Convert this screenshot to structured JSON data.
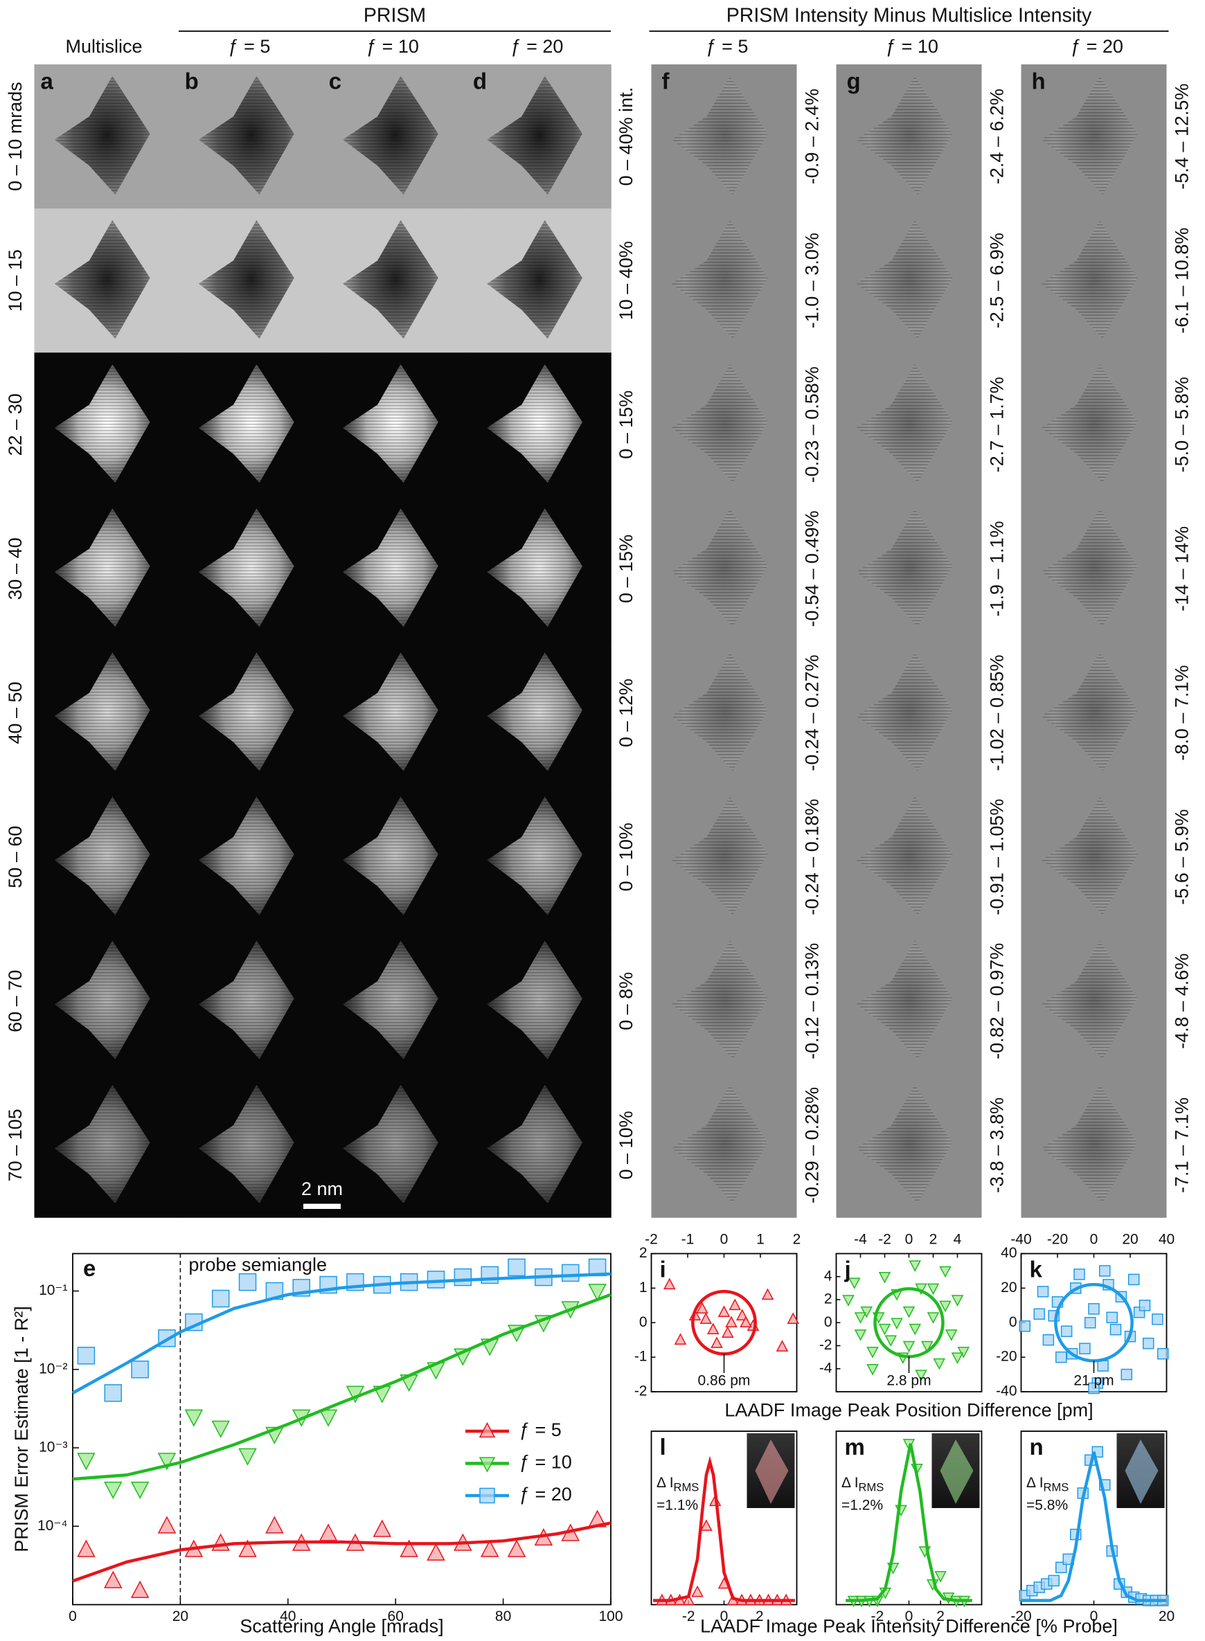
{
  "figure": {
    "headers": {
      "prism": "PRISM",
      "difference": "PRISM Intensity Minus Multislice Intensity"
    },
    "columns": [
      "Multislice",
      "ƒ = 5",
      "ƒ = 10",
      "ƒ = 20"
    ],
    "difference_columns": [
      "ƒ = 5",
      "ƒ = 10",
      "ƒ = 20"
    ],
    "panel_letters": [
      "a",
      "b",
      "c",
      "d"
    ],
    "difference_letters": [
      "f",
      "g",
      "h"
    ],
    "rows": [
      "0 – 10 mrads",
      "10 – 15",
      "22 – 30",
      "30 – 40",
      "40 – 50",
      "50 – 60",
      "60 – 70",
      "70 – 105"
    ],
    "intensity_ranges": [
      "0 – 40% int.",
      "10 – 40%",
      "0 – 15%",
      "0 – 15%",
      "0 – 12%",
      "0 – 10%",
      "0 – 8%",
      "0 – 10%"
    ],
    "difference_ranges": [
      [
        "-0.9 – 2.4%",
        "-1.0 – 3.0%",
        "-0.23 – 0.58%",
        "-0.54 – 0.49%",
        "-0.24 – 0.27%",
        "-0.24 – 0.18%",
        "-0.12 – 0.13%",
        "-0.29 – 0.28%"
      ],
      [
        "-2.4 – 6.2%",
        "-2.5 – 6.9%",
        "-2.7 – 1.7%",
        "-1.9 – 1.1%",
        "-1.02 – 0.85%",
        "-0.91 – 1.05%",
        "-0.82 – 0.97%",
        "-3.8 – 3.8%"
      ],
      [
        "-5.4 – 12.5%",
        "-6.1 – 10.8%",
        "-5.0 – 5.8%",
        "-14 – 14%",
        "-8.0 – 7.1%",
        "-5.6 – 5.9%",
        "-4.8 – 4.6%",
        "-7.1 – 7.1%"
      ]
    ],
    "scale_bar": "2 nm",
    "position_xlabel": "LAADF Image Peak Position Difference [pm]",
    "intensity_xlabel": "LAADF Image Peak Intensity Difference [% Probe]"
  },
  "chart_data": [
    {
      "type": "scatter-fit",
      "label": "e",
      "annotation": "probe semiangle",
      "annotation_x": 20,
      "xlabel": "Scattering Angle [mrads]",
      "ylabel": "PRISM Error Estimate  [1 - R²]",
      "xlim": [
        0,
        100
      ],
      "xticks": [
        0,
        20,
        40,
        60,
        80,
        100
      ],
      "ylim": [
        1e-05,
        0.3
      ],
      "log_y": true,
      "yticks": [
        {
          "value": 0.0001,
          "label": "10⁻⁴"
        },
        {
          "value": 0.001,
          "label": "10⁻³"
        },
        {
          "value": 0.01,
          "label": "10⁻²"
        },
        {
          "value": 0.1,
          "label": "10⁻¹"
        }
      ],
      "legend": "right",
      "x": [
        2.5,
        7.5,
        12.5,
        17.5,
        22.5,
        27.5,
        32.5,
        37.5,
        42.5,
        47.5,
        52.5,
        57.5,
        62.5,
        67.5,
        72.5,
        77.5,
        82.5,
        87.5,
        92.5,
        97.5
      ],
      "fit_x": [
        0,
        10,
        20,
        30,
        40,
        50,
        60,
        70,
        80,
        90,
        100
      ],
      "series": [
        {
          "name": "ƒ = 5",
          "color": "#e8141c",
          "marker_color": "#f5a3a6",
          "marker": "triangle-up",
          "values": [
            5e-05,
            2e-05,
            1.5e-05,
            0.0001,
            5e-05,
            6e-05,
            5e-05,
            0.0001,
            6e-05,
            8e-05,
            6e-05,
            9e-05,
            5e-05,
            4.5e-05,
            6e-05,
            5e-05,
            5e-05,
            7e-05,
            8e-05,
            0.00012
          ],
          "fit": [
            2e-05,
            3.5e-05,
            5e-05,
            6e-05,
            6.3e-05,
            6.3e-05,
            6e-05,
            6e-05,
            6.5e-05,
            8e-05,
            0.00011
          ]
        },
        {
          "name": "ƒ = 10",
          "color": "#22bb22",
          "marker_color": "#a0e890",
          "marker": "triangle-down",
          "values": [
            0.0007,
            0.0003,
            0.0003,
            0.0007,
            0.0025,
            0.0018,
            0.0008,
            0.0015,
            0.0025,
            0.0025,
            0.005,
            0.005,
            0.007,
            0.01,
            0.015,
            0.02,
            0.03,
            0.04,
            0.06,
            0.1
          ],
          "fit": [
            0.0004,
            0.00045,
            0.00065,
            0.0011,
            0.002,
            0.0038,
            0.007,
            0.014,
            0.028,
            0.05,
            0.09
          ]
        },
        {
          "name": "ƒ = 20",
          "color": "#1e9be8",
          "marker_color": "#a8d4f5",
          "marker": "square",
          "values": [
            0.015,
            0.005,
            0.01,
            0.025,
            0.04,
            0.08,
            0.13,
            0.1,
            0.11,
            0.12,
            0.13,
            0.12,
            0.13,
            0.14,
            0.15,
            0.16,
            0.2,
            0.15,
            0.17,
            0.2
          ],
          "fit": [
            0.005,
            0.012,
            0.03,
            0.06,
            0.09,
            0.11,
            0.125,
            0.135,
            0.145,
            0.155,
            0.165
          ]
        }
      ]
    },
    {
      "type": "scatter-circle",
      "label": "i",
      "color": "#e8141c",
      "marker_color": "#f5a3a6",
      "marker": "triangle-up",
      "xlim": [
        -2,
        2
      ],
      "xticks": [
        -2,
        -1,
        0,
        1,
        2
      ],
      "ylim": [
        -2,
        2
      ],
      "yticks": [
        -2,
        -1,
        0,
        1,
        2
      ],
      "x": [
        -1.5,
        -0.8,
        -0.5,
        -0.3,
        0,
        0.2,
        0.5,
        0.8,
        1.2,
        1.6,
        -0.2,
        0.3,
        -0.6,
        0.6,
        0.1,
        1.9,
        -1.2
      ],
      "y": [
        1.1,
        0.2,
        0.1,
        -0.2,
        0.3,
        0,
        0.2,
        -0.1,
        0.8,
        -0.7,
        -0.6,
        0.5,
        0.4,
        0,
        -0.3,
        0.1,
        -0.5
      ],
      "rms": 0.86,
      "rms_label": "0.86 pm"
    },
    {
      "type": "scatter-circle",
      "label": "j",
      "color": "#22bb22",
      "marker_color": "#a0e890",
      "marker": "triangle-down",
      "xlim": [
        -6,
        6
      ],
      "xticks": [
        -4,
        -2,
        0,
        2,
        4
      ],
      "ylim": [
        -6,
        6
      ],
      "yticks": [
        -4,
        -2,
        0,
        2,
        4
      ],
      "x": [
        -5,
        -4.5,
        -4,
        -3.5,
        -3,
        -2.5,
        -2,
        -1.5,
        -1,
        -0.5,
        0,
        0.5,
        1,
        1.5,
        2,
        2.5,
        3,
        3.5,
        4,
        4.5,
        -3,
        -1,
        1,
        3,
        0,
        -2,
        2,
        -4,
        4,
        0.5
      ],
      "y": [
        2,
        3.5,
        -1,
        1,
        -2.5,
        0.5,
        4,
        -1.5,
        2.5,
        -3,
        1,
        -0.5,
        3,
        -2,
        0.5,
        -3.5,
        1.5,
        -1,
        2,
        -2.5,
        -4,
        0,
        -4.5,
        4.5,
        -2,
        -0.5,
        3,
        0.5,
        -3,
        5
      ],
      "rms": 2.8,
      "rms_label": "2.8 pm"
    },
    {
      "type": "scatter-circle",
      "label": "k",
      "color": "#1e9be8",
      "marker_color": "#a8d4f5",
      "marker": "square",
      "xlim": [
        -40,
        40
      ],
      "xticks": [
        -40,
        -20,
        0,
        20,
        40
      ],
      "ylim": [
        -40,
        40
      ],
      "yticks": [
        -40,
        -20,
        0,
        20,
        40
      ],
      "x": [
        -38,
        -30,
        -25,
        -20,
        -15,
        -10,
        -5,
        0,
        5,
        10,
        15,
        20,
        25,
        30,
        35,
        -18,
        -8,
        8,
        18,
        28,
        -28,
        2,
        -2,
        12,
        -12,
        38,
        22,
        -22,
        0,
        6
      ],
      "y": [
        -2,
        5,
        -10,
        12,
        -5,
        20,
        -15,
        8,
        -25,
        3,
        15,
        -8,
        6,
        -12,
        2,
        -20,
        28,
        22,
        -30,
        10,
        18,
        -35,
        0,
        -4,
        -18,
        -18,
        25,
        4,
        -38,
        30
      ],
      "rms": 21,
      "rms_label": "21 pm"
    },
    {
      "type": "histogram-fit",
      "label": "l",
      "color": "#e8141c",
      "marker_color": "#f5a3a6",
      "marker": "triangle-up",
      "xlim": [
        -4.1,
        4.1
      ],
      "xticks": [
        -2,
        0,
        2
      ],
      "ylim": [
        0,
        1
      ],
      "x": [
        -3.5,
        -3,
        -2.5,
        -2,
        -1.5,
        -1,
        -0.5,
        0,
        0.5,
        1,
        1.5,
        2,
        2.5,
        3,
        3.5
      ],
      "y": [
        0,
        0,
        0,
        0,
        0.05,
        0.45,
        0.6,
        0.1,
        0,
        0,
        0,
        0,
        0,
        0,
        0
      ],
      "fit_x": [
        -4,
        -3,
        -2,
        -1.5,
        -1.2,
        -1,
        -0.8,
        -0.6,
        -0.4,
        0,
        0.5,
        1,
        2,
        3,
        4
      ],
      "fit": [
        0,
        0,
        0.024,
        0.25,
        0.57,
        0.76,
        0.84,
        0.76,
        0.57,
        0.17,
        0.013,
        0,
        0,
        0,
        0
      ],
      "delta": "Δ I",
      "delta_sub": "RMS",
      "rms_label": "=1.1%"
    },
    {
      "type": "histogram-fit",
      "label": "m",
      "color": "#22bb22",
      "marker_color": "#a0e890",
      "marker": "triangle-down",
      "xlim": [
        -4.6,
        4.6
      ],
      "xticks": [
        -2,
        0,
        2
      ],
      "ylim": [
        0,
        1
      ],
      "x": [
        -3.5,
        -3,
        -2.5,
        -2,
        -1.5,
        -1,
        -0.5,
        0,
        0.5,
        1,
        1.5,
        2,
        2.5,
        3,
        3.5
      ],
      "y": [
        0,
        0,
        0,
        0,
        0.05,
        0.2,
        0.55,
        0.95,
        0.8,
        0.3,
        0.1,
        0.15,
        0.02,
        0,
        0
      ],
      "fit_x": [
        -4,
        -3,
        -2,
        -1.5,
        -1,
        -0.5,
        0.1,
        0.7,
        1.2,
        1.7,
        2.2,
        3,
        4
      ],
      "fit": [
        0,
        0,
        0.01,
        0.07,
        0.28,
        0.66,
        0.95,
        0.66,
        0.28,
        0.07,
        0.01,
        0,
        0
      ],
      "delta": "Δ I",
      "delta_sub": "RMS",
      "rms_label": "=1.2%"
    },
    {
      "type": "histogram-fit",
      "label": "n",
      "color": "#1e9be8",
      "marker_color": "#a8d4f5",
      "marker": "square",
      "xlim": [
        -20,
        20
      ],
      "xticks": [
        -20,
        0,
        20
      ],
      "ylim": [
        0,
        1
      ],
      "x": [
        -19,
        -17,
        -15,
        -13,
        -11,
        -9,
        -7,
        -5,
        -3,
        -1,
        1,
        3,
        5,
        7,
        9,
        11,
        13,
        15,
        17,
        19
      ],
      "y": [
        0.03,
        0.06,
        0.08,
        0.1,
        0.12,
        0.2,
        0.25,
        0.4,
        0.65,
        0.85,
        0.9,
        0.7,
        0.3,
        0.1,
        0.05,
        0.02,
        0.01,
        0,
        0,
        0
      ],
      "fit_x": [
        -20,
        -12,
        -9,
        -7,
        -5,
        -3,
        0,
        3,
        5,
        7,
        9,
        12,
        20
      ],
      "fit": [
        0,
        0,
        0.03,
        0.12,
        0.32,
        0.62,
        0.9,
        0.62,
        0.32,
        0.12,
        0.03,
        0,
        0
      ],
      "delta": "Δ I",
      "delta_sub": "RMS",
      "rms_label": "=5.8%"
    }
  ]
}
